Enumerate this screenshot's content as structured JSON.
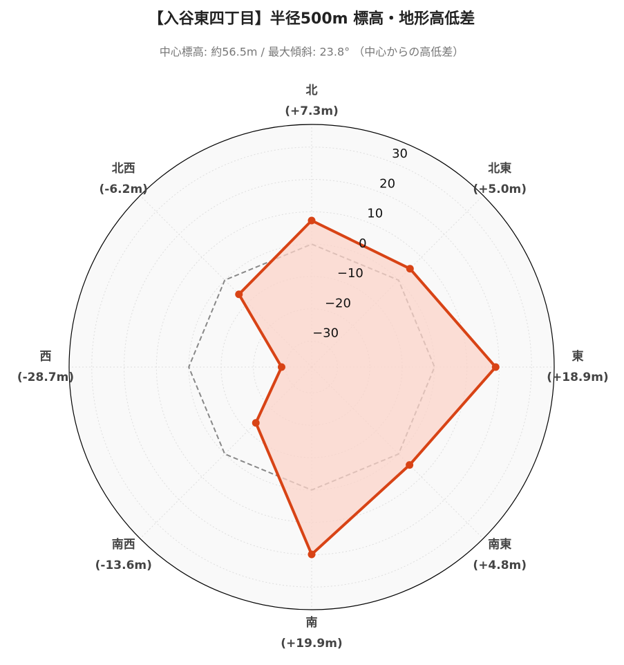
{
  "chart_data": {
    "type": "radar",
    "title": "【入谷東四丁目】半径500m 標高・地形高低差",
    "subtitle": "中心標高: 約56.5m / 最大傾斜: 23.8° （中心からの高低差）",
    "categories": [
      "北",
      "北東",
      "東",
      "南東",
      "南",
      "南西",
      "西",
      "北西"
    ],
    "values": [
      7.3,
      5.0,
      18.9,
      4.8,
      19.9,
      -13.6,
      -28.7,
      -6.2
    ],
    "value_labels": [
      "(+7.3m)",
      "(+5.0m)",
      "(+18.9m)",
      "(+4.8m)",
      "(+19.9m)",
      "(-13.6m)",
      "(-28.7m)",
      "(-6.2m)"
    ],
    "color": "#d84315",
    "fill": "#fbd3c8",
    "reference": 0,
    "ylim": [
      -38,
      37
    ],
    "yticks": [
      {
        "value": -30,
        "label": "−30"
      },
      {
        "value": -20,
        "label": "−20"
      },
      {
        "value": -10,
        "label": "−10"
      },
      0,
      10,
      20,
      30
    ],
    "grid": true
  }
}
